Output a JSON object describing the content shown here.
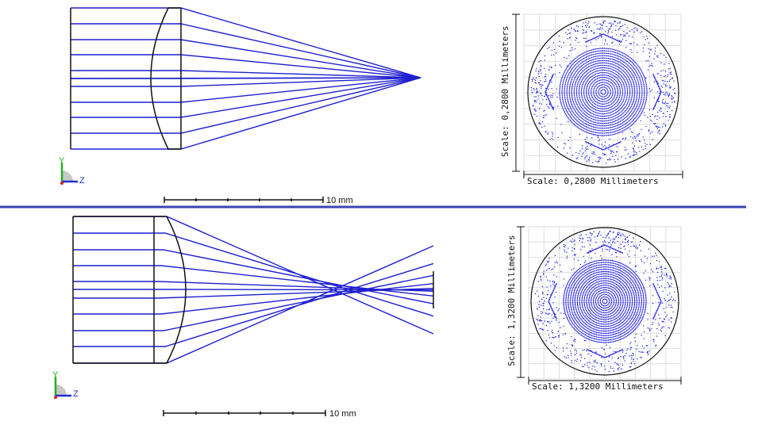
{
  "colors": {
    "ray": "#1f1fd0",
    "lens_outline": "#111111",
    "divider": "#3b45b5",
    "spot": "#1a1ae0",
    "grid": "#dedede",
    "axis_y": "#20b020",
    "axis_z": "#2030d0"
  },
  "panels": [
    {
      "id": "top",
      "description_icon": "lens-ray-diagram",
      "scale_bar_label": "10 mm",
      "axis_y_label": "Y",
      "axis_z_label": "Z",
      "spot_scale_vertical": "Scale: 0,2800 Millimeters",
      "spot_scale_horizontal": "Scale: 0,2800 Millimeters"
    },
    {
      "id": "bottom",
      "description_icon": "lens-ray-diagram",
      "scale_bar_label": "10 mm",
      "axis_y_label": "Y",
      "axis_z_label": "Z",
      "spot_scale_vertical": "Scale: 1,3200 Millimeters",
      "spot_scale_horizontal": "Scale: 1,3200 Millimeters"
    }
  ]
}
